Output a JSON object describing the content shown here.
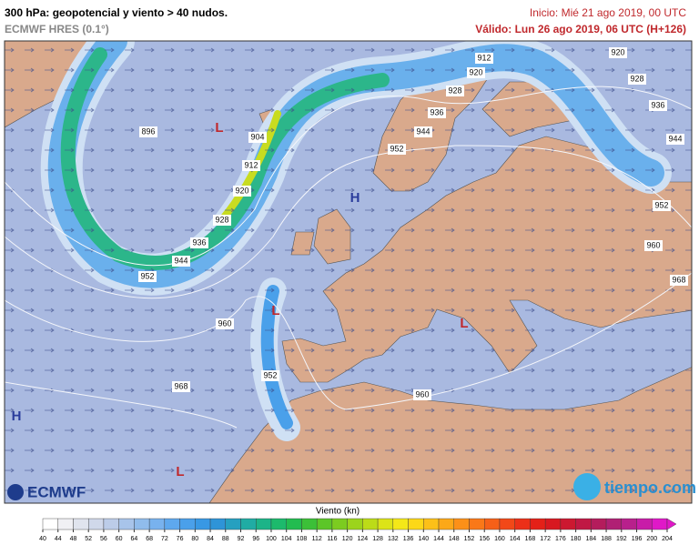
{
  "header": {
    "title": "300 hPa: geopotencial y viento > 40 nudos.",
    "model": "ECMWF HRES (0.1°)",
    "init": "Inicio: Mié 21 ago 2019, 00 UTC",
    "valid": "Válido: Lun 26 ago 2019, 06 UTC (H+126)"
  },
  "contour_labels": [
    896,
    904,
    912,
    920,
    928,
    936,
    944,
    952,
    960,
    968,
    952,
    960,
    952,
    944,
    936,
    928,
    920,
    912,
    920,
    928,
    936,
    944,
    952,
    960,
    968
  ],
  "pressure_centers": [
    "L",
    "H",
    "L",
    "H",
    "L",
    "L"
  ],
  "colorbar": {
    "title": "Viento (kn)",
    "ticks": [
      40,
      44,
      48,
      52,
      56,
      60,
      64,
      68,
      72,
      76,
      80,
      84,
      88,
      92,
      96,
      100,
      104,
      108,
      112,
      116,
      120,
      124,
      128,
      132,
      136,
      140,
      144,
      148,
      152,
      156,
      160,
      164,
      168,
      172,
      176,
      180,
      184,
      188,
      192,
      196,
      200,
      204
    ],
    "colors": [
      "#ffffff",
      "#f0f0f4",
      "#e0e4ee",
      "#d0d8ea",
      "#bccce8",
      "#a8c4ea",
      "#90bcec",
      "#78b2ee",
      "#5ea8ee",
      "#4aa0ea",
      "#3898e4",
      "#2e94d8",
      "#26a0c0",
      "#20aca4",
      "#1cb488",
      "#1cba6c",
      "#22bc50",
      "#3cc038",
      "#5cc628",
      "#7ccc20",
      "#9cd41c",
      "#bcdc18",
      "#dce418",
      "#f4e818",
      "#fcd818",
      "#fcc018",
      "#fca818",
      "#fc9018",
      "#fa7818",
      "#f66018",
      "#f24818",
      "#ec3018",
      "#e42018",
      "#d81820",
      "#cc1830",
      "#c01844",
      "#b41c5c",
      "#b02074",
      "#b8208c",
      "#c81ca8",
      "#e018c8"
    ]
  },
  "logos": {
    "left": "ECMWF",
    "right": "tiempo.com"
  }
}
